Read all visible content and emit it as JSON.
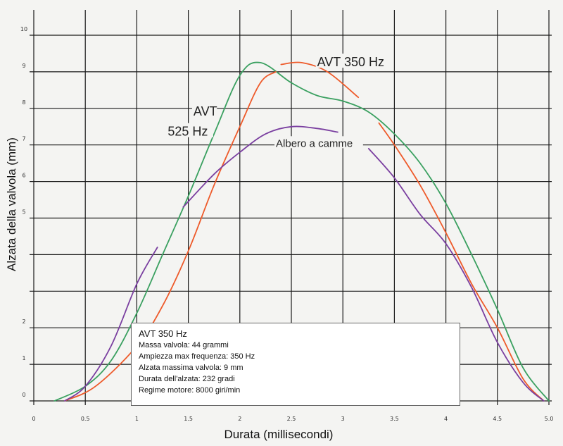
{
  "chart_data": {
    "type": "line",
    "xlabel": "Durata (millisecondi)",
    "ylabel": "Alzata della valvola (mm)",
    "xlim": [
      0,
      5
    ],
    "ylim": [
      0,
      10
    ],
    "x_ticks": [
      {
        "v": 0,
        "label": "0"
      },
      {
        "v": 0.5,
        "label": "0.5"
      },
      {
        "v": 1,
        "label": "1"
      },
      {
        "v": 1.5,
        "label": "1.5"
      },
      {
        "v": 2,
        "label": "2"
      },
      {
        "v": 2.5,
        "label": "2.5"
      },
      {
        "v": 3,
        "label": "3"
      },
      {
        "v": 3.5,
        "label": "3.5"
      },
      {
        "v": 4,
        "label": "4"
      },
      {
        "v": 4.5,
        "label": "4.5"
      },
      {
        "v": 5,
        "label": "5.0"
      }
    ],
    "y_ticks": [
      {
        "v": 0,
        "label": "0"
      },
      {
        "v": 1,
        "label": "1"
      },
      {
        "v": 2,
        "label": "2"
      },
      {
        "v": 5,
        "label": "5"
      },
      {
        "v": 6,
        "label": "6"
      },
      {
        "v": 7,
        "label": "7"
      },
      {
        "v": 8,
        "label": "8"
      },
      {
        "v": 9,
        "label": "9"
      },
      {
        "v": 10,
        "label": "10"
      }
    ],
    "grid": true,
    "series": [
      {
        "name": "AVT 525 Hz",
        "color": "#3aa060",
        "segments": [
          [
            [
              0.2,
              0.0
            ],
            [
              0.5,
              0.4
            ],
            [
              0.75,
              1.1
            ],
            [
              1.0,
              2.4
            ],
            [
              1.25,
              4.0
            ],
            [
              1.5,
              5.6
            ],
            [
              1.75,
              7.3
            ],
            [
              2.0,
              8.9
            ],
            [
              2.2,
              9.25
            ],
            [
              2.5,
              8.7
            ],
            [
              2.75,
              8.35
            ],
            [
              3.0,
              8.2
            ],
            [
              3.25,
              7.9
            ],
            [
              3.5,
              7.3
            ],
            [
              3.75,
              6.5
            ],
            [
              4.0,
              5.4
            ],
            [
              4.25,
              4.0
            ],
            [
              4.5,
              2.5
            ],
            [
              4.75,
              0.9
            ],
            [
              5.0,
              0.0
            ]
          ]
        ]
      },
      {
        "name": "AVT 350 Hz",
        "color": "#ee5a2a",
        "segments": [
          [
            [
              0.3,
              0.0
            ],
            [
              0.6,
              0.4
            ],
            [
              1.0,
              1.5
            ],
            [
              1.25,
              2.6
            ],
            [
              1.5,
              4.1
            ],
            [
              1.75,
              5.9
            ],
            [
              2.0,
              7.5
            ],
            [
              2.2,
              8.7
            ],
            [
              2.35,
              9.0
            ]
          ],
          [
            [
              2.4,
              9.2
            ],
            [
              2.6,
              9.25
            ],
            [
              2.85,
              9.0
            ],
            [
              3.15,
              8.3
            ]
          ],
          [
            [
              3.35,
              7.6
            ],
            [
              3.5,
              7.0
            ],
            [
              3.75,
              5.9
            ],
            [
              4.0,
              4.6
            ],
            [
              4.25,
              3.2
            ],
            [
              4.5,
              2.0
            ],
            [
              4.75,
              0.6
            ],
            [
              4.95,
              0.0
            ]
          ]
        ]
      },
      {
        "name": "Albero a camme",
        "color": "#7a3fa0",
        "segments": [
          [
            [
              0.3,
              0.0
            ],
            [
              0.5,
              0.4
            ],
            [
              0.75,
              1.5
            ],
            [
              1.0,
              3.2
            ],
            [
              1.2,
              4.2
            ]
          ],
          [
            [
              1.45,
              5.3
            ],
            [
              1.75,
              6.2
            ],
            [
              2.0,
              6.8
            ],
            [
              2.25,
              7.3
            ],
            [
              2.5,
              7.5
            ],
            [
              2.75,
              7.45
            ],
            [
              2.95,
              7.35
            ]
          ],
          [
            [
              3.25,
              6.9
            ],
            [
              3.5,
              6.1
            ],
            [
              3.75,
              5.1
            ],
            [
              4.0,
              4.3
            ],
            [
              4.25,
              3.1
            ],
            [
              4.5,
              1.6
            ],
            [
              4.75,
              0.5
            ],
            [
              4.95,
              0.0
            ]
          ]
        ]
      }
    ],
    "series_labels": [
      {
        "text": "AVT",
        "x": 1.55,
        "y": 7.8,
        "size": 18
      },
      {
        "text": "525 Hz",
        "x": 1.3,
        "y": 7.25,
        "size": 18
      },
      {
        "text": "AVT 350 Hz",
        "x": 2.75,
        "y": 9.15,
        "size": 18
      },
      {
        "text": "Albero a camme",
        "x": 2.35,
        "y": 6.95,
        "size": 15
      }
    ]
  },
  "info_box": {
    "title": "AVT 350 Hz",
    "lines": [
      "Massa valvola: 44 grammi",
      "Ampiezza max frequenza: 350 Hz",
      "Alzata massima valvola: 9 mm",
      "Durata dell'alzata: 232 gradi",
      "Regime motore: 8000 giri/min"
    ]
  }
}
